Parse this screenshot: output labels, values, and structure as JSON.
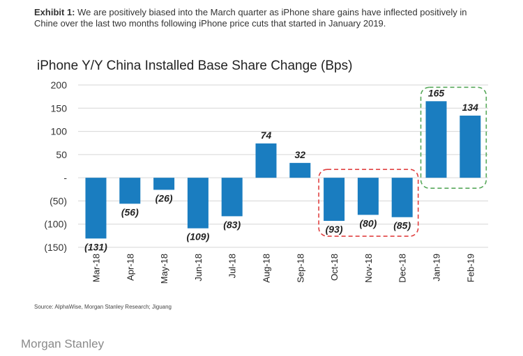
{
  "exhibit": {
    "label": "Exhibit 1:",
    "text": "We are positively biased into the March quarter as iPhone share gains have inflected positively in Chine over the last two months following iPhone price cuts that started in January 2019."
  },
  "source": "Source: AlphaWise, Morgan Stanley Research; Jiguang",
  "brand": "Morgan Stanley",
  "colors": {
    "bar": "#1a7dc0",
    "highlight_negative": "#e04040",
    "highlight_positive": "#57a85a"
  },
  "chart_data": {
    "type": "bar",
    "title": "iPhone Y/Y China Installed Base Share Change (Bps)",
    "xlabel": "",
    "ylabel": "",
    "ylim": [
      -150,
      200
    ],
    "yticks": [
      200,
      150,
      100,
      50,
      0,
      -50,
      -100,
      -150
    ],
    "ytick_labels": [
      "200",
      "150",
      "100",
      "50",
      "-",
      "(50)",
      "(100)",
      "(150)"
    ],
    "categories": [
      "Mar-18",
      "Apr-18",
      "May-18",
      "Jun-18",
      "Jul-18",
      "Aug-18",
      "Sep-18",
      "Oct-18",
      "Nov-18",
      "Dec-18",
      "Jan-19",
      "Feb-19"
    ],
    "values": [
      -131,
      -56,
      -26,
      -109,
      -83,
      74,
      32,
      -93,
      -80,
      -85,
      165,
      134
    ],
    "value_labels": [
      "(131)",
      "(56)",
      "(26)",
      "(109)",
      "(83)",
      "74",
      "32",
      "(93)",
      "(80)",
      "(85)",
      "165",
      "134"
    ],
    "grid": true,
    "legend": "none",
    "highlights": [
      {
        "from": "Oct-18",
        "to": "Dec-18",
        "color": "#e04040"
      },
      {
        "from": "Jan-19",
        "to": "Feb-19",
        "color": "#57a85a"
      }
    ]
  }
}
